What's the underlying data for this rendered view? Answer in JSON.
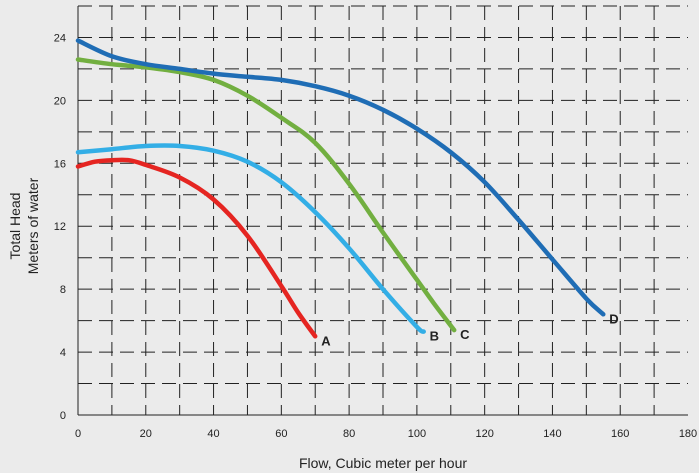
{
  "chart_data": {
    "type": "line",
    "xlabel": "Flow, Cubic meter per hour",
    "ylabel_line1": "Total Head",
    "ylabel_line2": "Meters of water",
    "xlim": [
      0,
      180
    ],
    "ylim": [
      0,
      26
    ],
    "x_ticks": [
      "0",
      "20",
      "40",
      "60",
      "80",
      "100",
      "120",
      "140",
      "160",
      "180"
    ],
    "y_ticks": [
      "0",
      "4",
      "8",
      "12",
      "16",
      "20",
      "24"
    ],
    "grid": true,
    "series": [
      {
        "name": "A",
        "color": "#e52521",
        "x": [
          0,
          5,
          10,
          15,
          20,
          30,
          40,
          50,
          60,
          65,
          70
        ],
        "y": [
          15.8,
          16.1,
          16.2,
          16.2,
          15.9,
          15.1,
          13.7,
          11.4,
          8.2,
          6.5,
          5.0
        ]
      },
      {
        "name": "B",
        "color": "#33aee6",
        "x": [
          0,
          10,
          20,
          30,
          40,
          50,
          60,
          70,
          80,
          90,
          100,
          102
        ],
        "y": [
          16.7,
          16.9,
          17.1,
          17.1,
          16.8,
          16.1,
          14.8,
          12.9,
          10.6,
          8.0,
          5.6,
          5.3
        ]
      },
      {
        "name": "C",
        "color": "#72af40",
        "x": [
          0,
          10,
          20,
          30,
          40,
          50,
          60,
          70,
          80,
          90,
          100,
          105,
          111
        ],
        "y": [
          22.6,
          22.3,
          22.1,
          21.8,
          21.3,
          20.3,
          18.9,
          17.3,
          14.7,
          11.6,
          8.6,
          7.1,
          5.4
        ]
      },
      {
        "name": "D",
        "color": "#1f6db5",
        "x": [
          0,
          10,
          20,
          30,
          40,
          50,
          60,
          70,
          80,
          90,
          100,
          110,
          120,
          130,
          140,
          150,
          155
        ],
        "y": [
          23.8,
          22.8,
          22.3,
          22.0,
          21.7,
          21.5,
          21.3,
          20.9,
          20.3,
          19.4,
          18.2,
          16.7,
          14.8,
          12.4,
          9.9,
          7.4,
          6.4
        ]
      }
    ]
  }
}
